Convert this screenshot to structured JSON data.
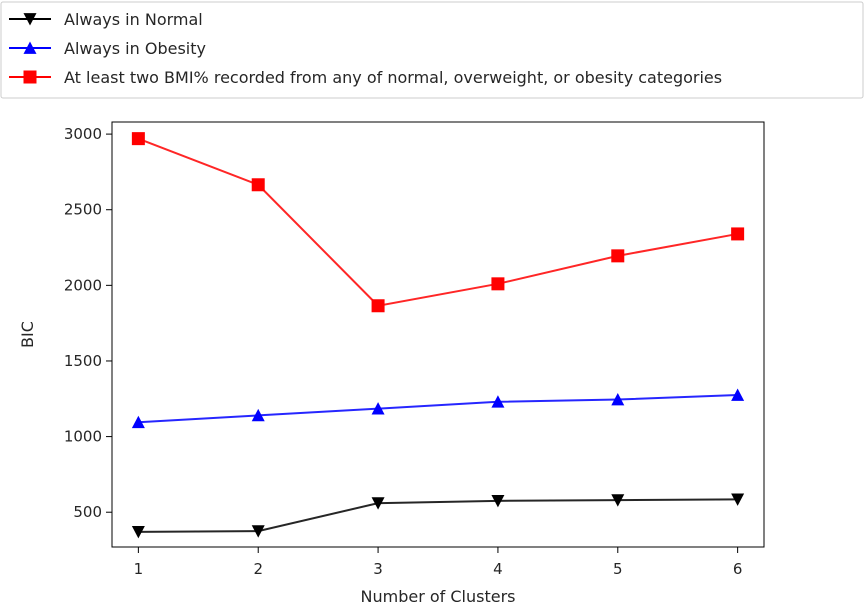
{
  "chart_data": {
    "type": "line",
    "title": "",
    "xlabel": "Number of Clusters",
    "ylabel": "BIC",
    "x": [
      1,
      2,
      3,
      4,
      5,
      6
    ],
    "xlim": [
      0.78,
      6.22
    ],
    "ylim": [
      270,
      3080
    ],
    "xticks": [
      1,
      2,
      3,
      4,
      5,
      6
    ],
    "yticks": [
      500,
      1000,
      1500,
      2000,
      2500,
      3000
    ],
    "grid": false,
    "legend_placement": "top-left, above plot",
    "series": [
      {
        "name": "Always in Normal",
        "color": "#000000",
        "marker": "triangle-down",
        "values": [
          370,
          375,
          560,
          575,
          580,
          585
        ]
      },
      {
        "name": "Always in Obesity",
        "color": "#0000ff",
        "marker": "triangle-up",
        "values": [
          1095,
          1140,
          1185,
          1230,
          1245,
          1275
        ]
      },
      {
        "name": "At least two BMI% recorded from any of normal, overweight, or obesity categories",
        "color": "#ff0000",
        "marker": "square",
        "values": [
          2970,
          2665,
          1865,
          2010,
          2195,
          2340
        ]
      }
    ]
  }
}
